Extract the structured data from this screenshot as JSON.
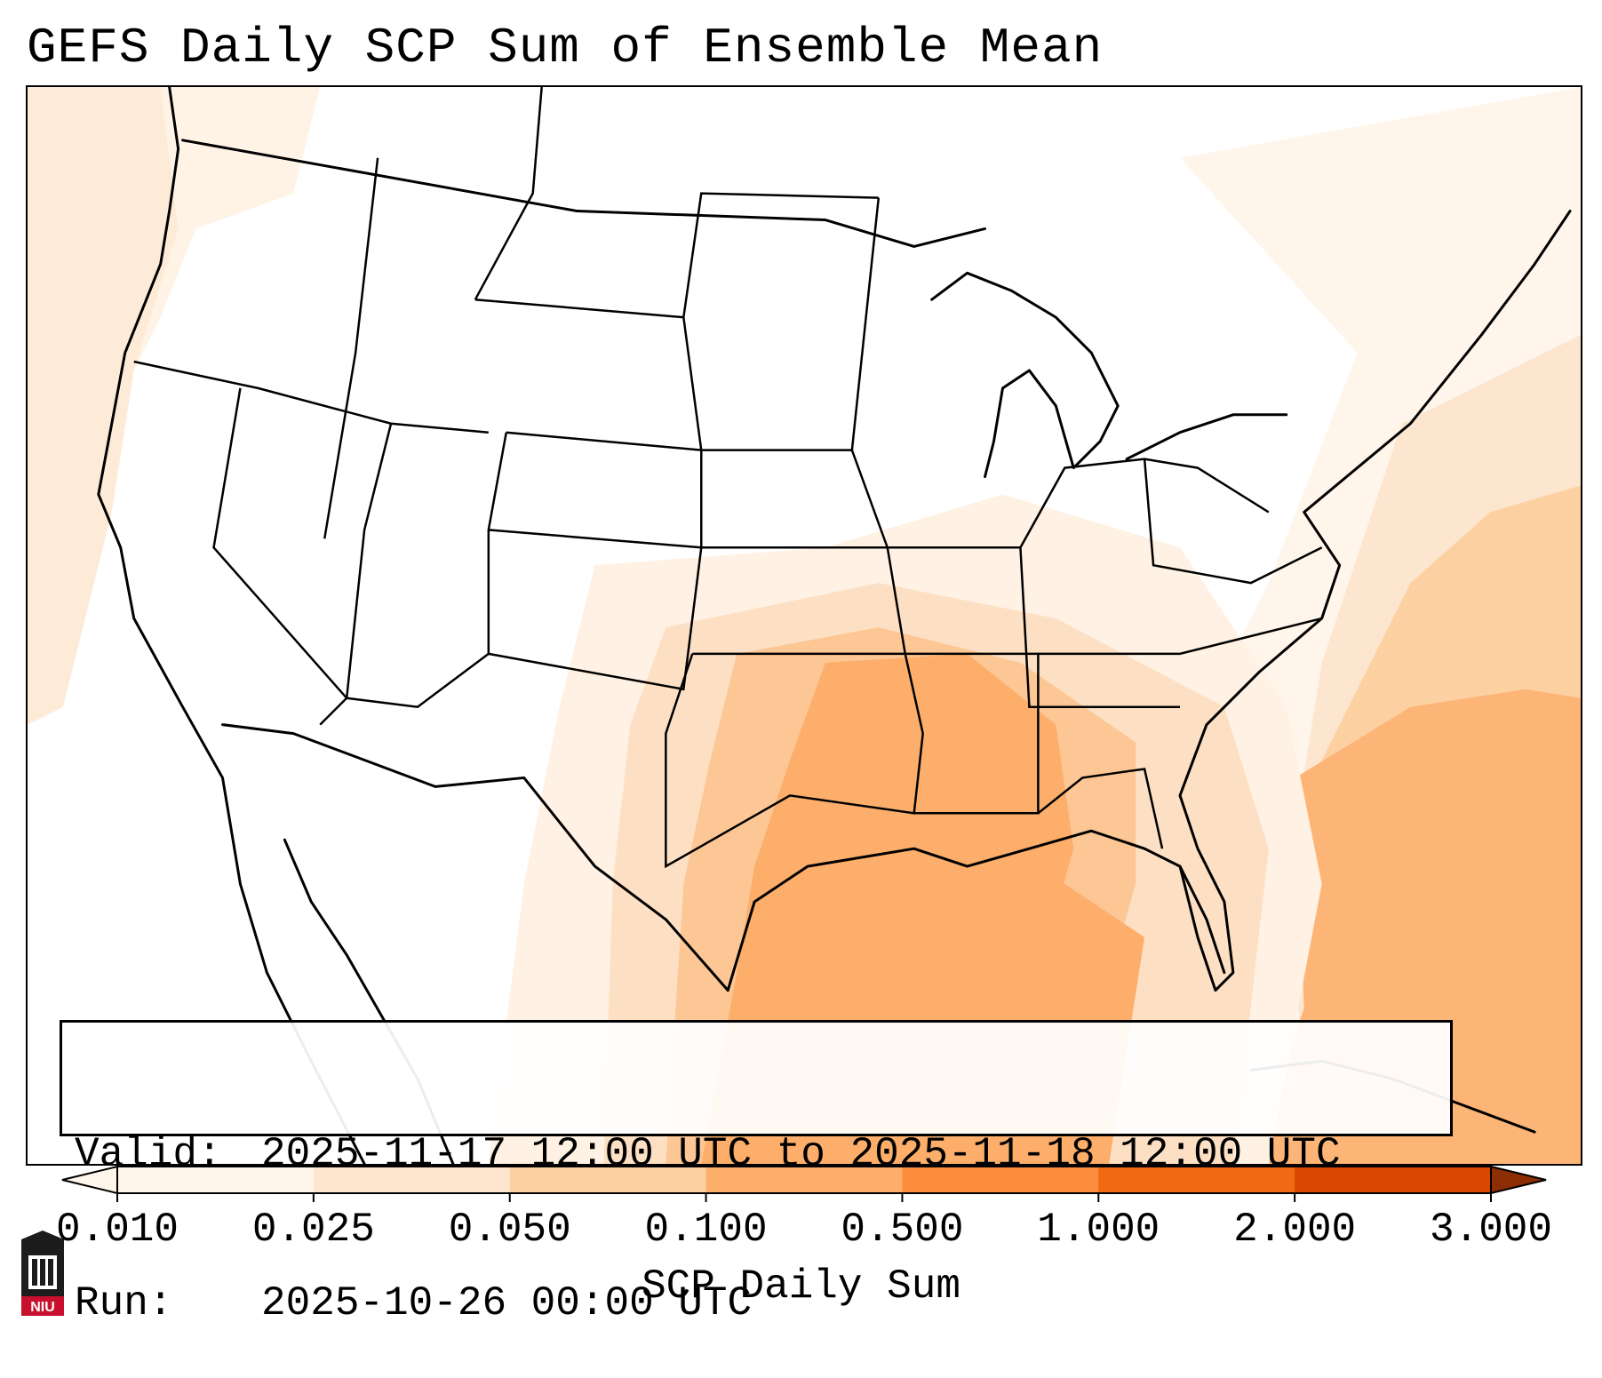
{
  "title": "GEFS Daily SCP Sum of Ensemble Mean",
  "info": {
    "valid_label": "Valid:",
    "valid_value": "2025-11-17 12:00 UTC to 2025-11-18 12:00 UTC",
    "run_label": "Run:",
    "run_value": "2025-10-26 00:00 UTC"
  },
  "colorbar": {
    "label": "SCP Daily Sum",
    "ticks": [
      "0.010",
      "0.025",
      "0.050",
      "0.100",
      "0.500",
      "1.000",
      "2.000",
      "3.000"
    ],
    "colors": [
      "#fff5eb",
      "#fee6ce",
      "#fdd0a2",
      "#fdae6b",
      "#fd8d3c",
      "#f16913",
      "#d94801",
      "#8c2d04"
    ]
  },
  "logo": {
    "text": "NIU",
    "icon": "niu-castle-icon"
  }
}
